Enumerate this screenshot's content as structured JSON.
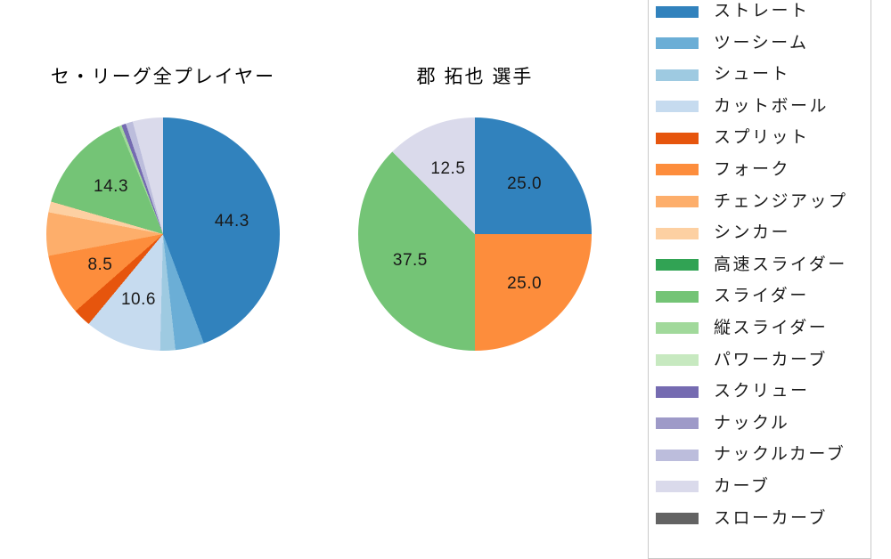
{
  "page": {
    "background_color": "#ffffff",
    "legend_border_color": "#c9c9c9",
    "text_color": "#1a1a1a"
  },
  "chart_data": [
    {
      "type": "pie",
      "title": "セ・リーグ全プレイヤー",
      "unit": "percent",
      "start_angle": "top",
      "direction": "clockwise",
      "label_distance_ratio": 0.6,
      "label_min_value": 8,
      "visible_value_labels": [
        "44.3",
        "14.3",
        "8.5",
        "10.6"
      ],
      "slices": [
        {
          "label": "ストレート",
          "value": 44.3,
          "color": "#3182bd"
        },
        {
          "label": "ツーシーム",
          "value": 4.0,
          "color": "#6baed6"
        },
        {
          "label": "シュート",
          "value": 2.1,
          "color": "#9ecae1"
        },
        {
          "label": "カットボール",
          "value": 10.6,
          "color": "#c6dbef"
        },
        {
          "label": "スプリット",
          "value": 2.5,
          "color": "#e6550d"
        },
        {
          "label": "フォーク",
          "value": 8.5,
          "color": "#fd8d3c"
        },
        {
          "label": "チェンジアップ",
          "value": 6.0,
          "color": "#fdae6b"
        },
        {
          "label": "シンカー",
          "value": 1.5,
          "color": "#fdd0a2"
        },
        {
          "label": "スライダー",
          "value": 14.3,
          "color": "#74c476"
        },
        {
          "label": "縦スライダー",
          "value": 0.4,
          "color": "#a1d99b"
        },
        {
          "label": "スクリュー",
          "value": 0.6,
          "color": "#756bb1"
        },
        {
          "label": "ナックルカーブ",
          "value": 1.0,
          "color": "#bcbddc"
        },
        {
          "label": "カーブ",
          "value": 4.2,
          "color": "#dadaeb"
        }
      ]
    },
    {
      "type": "pie",
      "title": "郡 拓也 選手",
      "unit": "percent",
      "start_angle": "top",
      "direction": "clockwise",
      "label_distance_ratio": 0.6,
      "label_min_value": 8,
      "visible_value_labels": [
        "25.0",
        "25.0",
        "37.5",
        "12.5"
      ],
      "slices": [
        {
          "label": "ストレート",
          "value": 25.0,
          "color": "#3182bd"
        },
        {
          "label": "フォーク",
          "value": 25.0,
          "color": "#fd8d3c"
        },
        {
          "label": "スライダー",
          "value": 37.5,
          "color": "#74c476"
        },
        {
          "label": "カーブ",
          "value": 12.5,
          "color": "#dadaeb"
        }
      ]
    }
  ],
  "legend": {
    "position": "right-edge-clipped",
    "items": [
      {
        "label": "ストレート",
        "color": "#3182bd"
      },
      {
        "label": "ツーシーム",
        "color": "#6baed6"
      },
      {
        "label": "シュート",
        "color": "#9ecae1"
      },
      {
        "label": "カットボール",
        "color": "#c6dbef"
      },
      {
        "label": "スプリット",
        "color": "#e6550d"
      },
      {
        "label": "フォーク",
        "color": "#fd8d3c"
      },
      {
        "label": "チェンジアップ",
        "color": "#fdae6b"
      },
      {
        "label": "シンカー",
        "color": "#fdd0a2"
      },
      {
        "label": "高速スライダー",
        "color": "#31a354"
      },
      {
        "label": "スライダー",
        "color": "#74c476"
      },
      {
        "label": "縦スライダー",
        "color": "#a1d99b"
      },
      {
        "label": "パワーカーブ",
        "color": "#c7e9c0"
      },
      {
        "label": "スクリュー",
        "color": "#756bb1"
      },
      {
        "label": "ナックル",
        "color": "#9e9ac8"
      },
      {
        "label": "ナックルカーブ",
        "color": "#bcbddc"
      },
      {
        "label": "カーブ",
        "color": "#dadaeb"
      },
      {
        "label": "スローカーブ",
        "color": "#636363"
      }
    ]
  }
}
